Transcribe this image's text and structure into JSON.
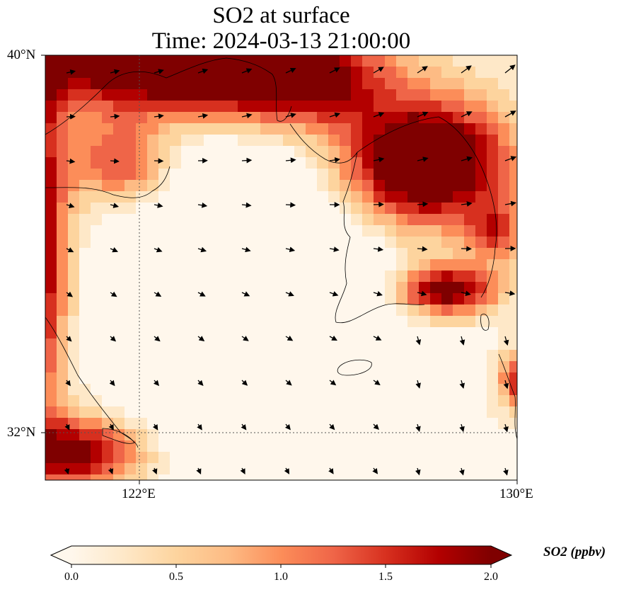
{
  "title": {
    "line1": "SO2 at surface",
    "line2": "Time: 2024-03-13 21:00:00"
  },
  "map": {
    "lon_range": [
      119.75,
      130.0
    ],
    "lat_range": [
      31.0,
      40.0
    ],
    "lat_ticks": [
      {
        "value": 40,
        "label": "40°N"
      },
      {
        "value": 32,
        "label": "32°N"
      }
    ],
    "lon_ticks": [
      {
        "value": 122,
        "label": "122°E"
      },
      {
        "value": 130,
        "label": "130°E"
      }
    ],
    "gridlines": "dotted at 122°E and 32°N",
    "field": "SO2 concentration (ppbv) with low-level wind vectors",
    "description_regions": {
      "high_north": "Bohai / North China Plain and Liaoning coast",
      "high_northeast": "North Korea and northern South Korea",
      "high_southeast": "southern Korean coast plume",
      "high_west": "Shandong and Jiangsu coast",
      "low_center": "Yellow Sea and East China Sea"
    }
  },
  "colorbar": {
    "label": "SO2 (ppbv)",
    "ticks": [
      "0.0",
      "0.5",
      "1.0",
      "1.5",
      "2.0"
    ],
    "min": 0.0,
    "max": 2.0,
    "extend": "both",
    "colormap": "OrRd",
    "colors": [
      "#fff7ec",
      "#fee8c8",
      "#fdd49e",
      "#fdbb84",
      "#fc8d59",
      "#ef6548",
      "#d7301f",
      "#b30000",
      "#7f0000"
    ]
  }
}
